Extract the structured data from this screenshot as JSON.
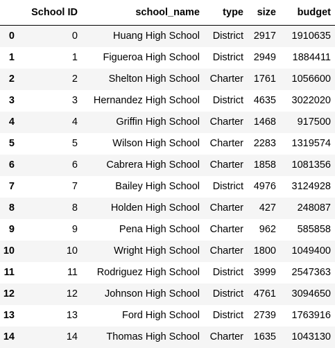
{
  "table": {
    "headers": [
      "",
      "School ID",
      "school_name",
      "type",
      "size",
      "budget"
    ],
    "rows": [
      {
        "index": "0",
        "school_id": "0",
        "school_name": "Huang High School",
        "type": "District",
        "size": "2917",
        "budget": "1910635"
      },
      {
        "index": "1",
        "school_id": "1",
        "school_name": "Figueroa High School",
        "type": "District",
        "size": "2949",
        "budget": "1884411"
      },
      {
        "index": "2",
        "school_id": "2",
        "school_name": "Shelton High School",
        "type": "Charter",
        "size": "1761",
        "budget": "1056600"
      },
      {
        "index": "3",
        "school_id": "3",
        "school_name": "Hernandez High School",
        "type": "District",
        "size": "4635",
        "budget": "3022020"
      },
      {
        "index": "4",
        "school_id": "4",
        "school_name": "Griffin High School",
        "type": "Charter",
        "size": "1468",
        "budget": "917500"
      },
      {
        "index": "5",
        "school_id": "5",
        "school_name": "Wilson High School",
        "type": "Charter",
        "size": "2283",
        "budget": "1319574"
      },
      {
        "index": "6",
        "school_id": "6",
        "school_name": "Cabrera High School",
        "type": "Charter",
        "size": "1858",
        "budget": "1081356"
      },
      {
        "index": "7",
        "school_id": "7",
        "school_name": "Bailey High School",
        "type": "District",
        "size": "4976",
        "budget": "3124928"
      },
      {
        "index": "8",
        "school_id": "8",
        "school_name": "Holden High School",
        "type": "Charter",
        "size": "427",
        "budget": "248087"
      },
      {
        "index": "9",
        "school_id": "9",
        "school_name": "Pena High School",
        "type": "Charter",
        "size": "962",
        "budget": "585858"
      },
      {
        "index": "10",
        "school_id": "10",
        "school_name": "Wright High School",
        "type": "Charter",
        "size": "1800",
        "budget": "1049400"
      },
      {
        "index": "11",
        "school_id": "11",
        "school_name": "Rodriguez High School",
        "type": "District",
        "size": "3999",
        "budget": "2547363"
      },
      {
        "index": "12",
        "school_id": "12",
        "school_name": "Johnson High School",
        "type": "District",
        "size": "4761",
        "budget": "3094650"
      },
      {
        "index": "13",
        "school_id": "13",
        "school_name": "Ford High School",
        "type": "District",
        "size": "2739",
        "budget": "1763916"
      },
      {
        "index": "14",
        "school_id": "14",
        "school_name": "Thomas High School",
        "type": "Charter",
        "size": "1635",
        "budget": "1043130"
      }
    ]
  }
}
